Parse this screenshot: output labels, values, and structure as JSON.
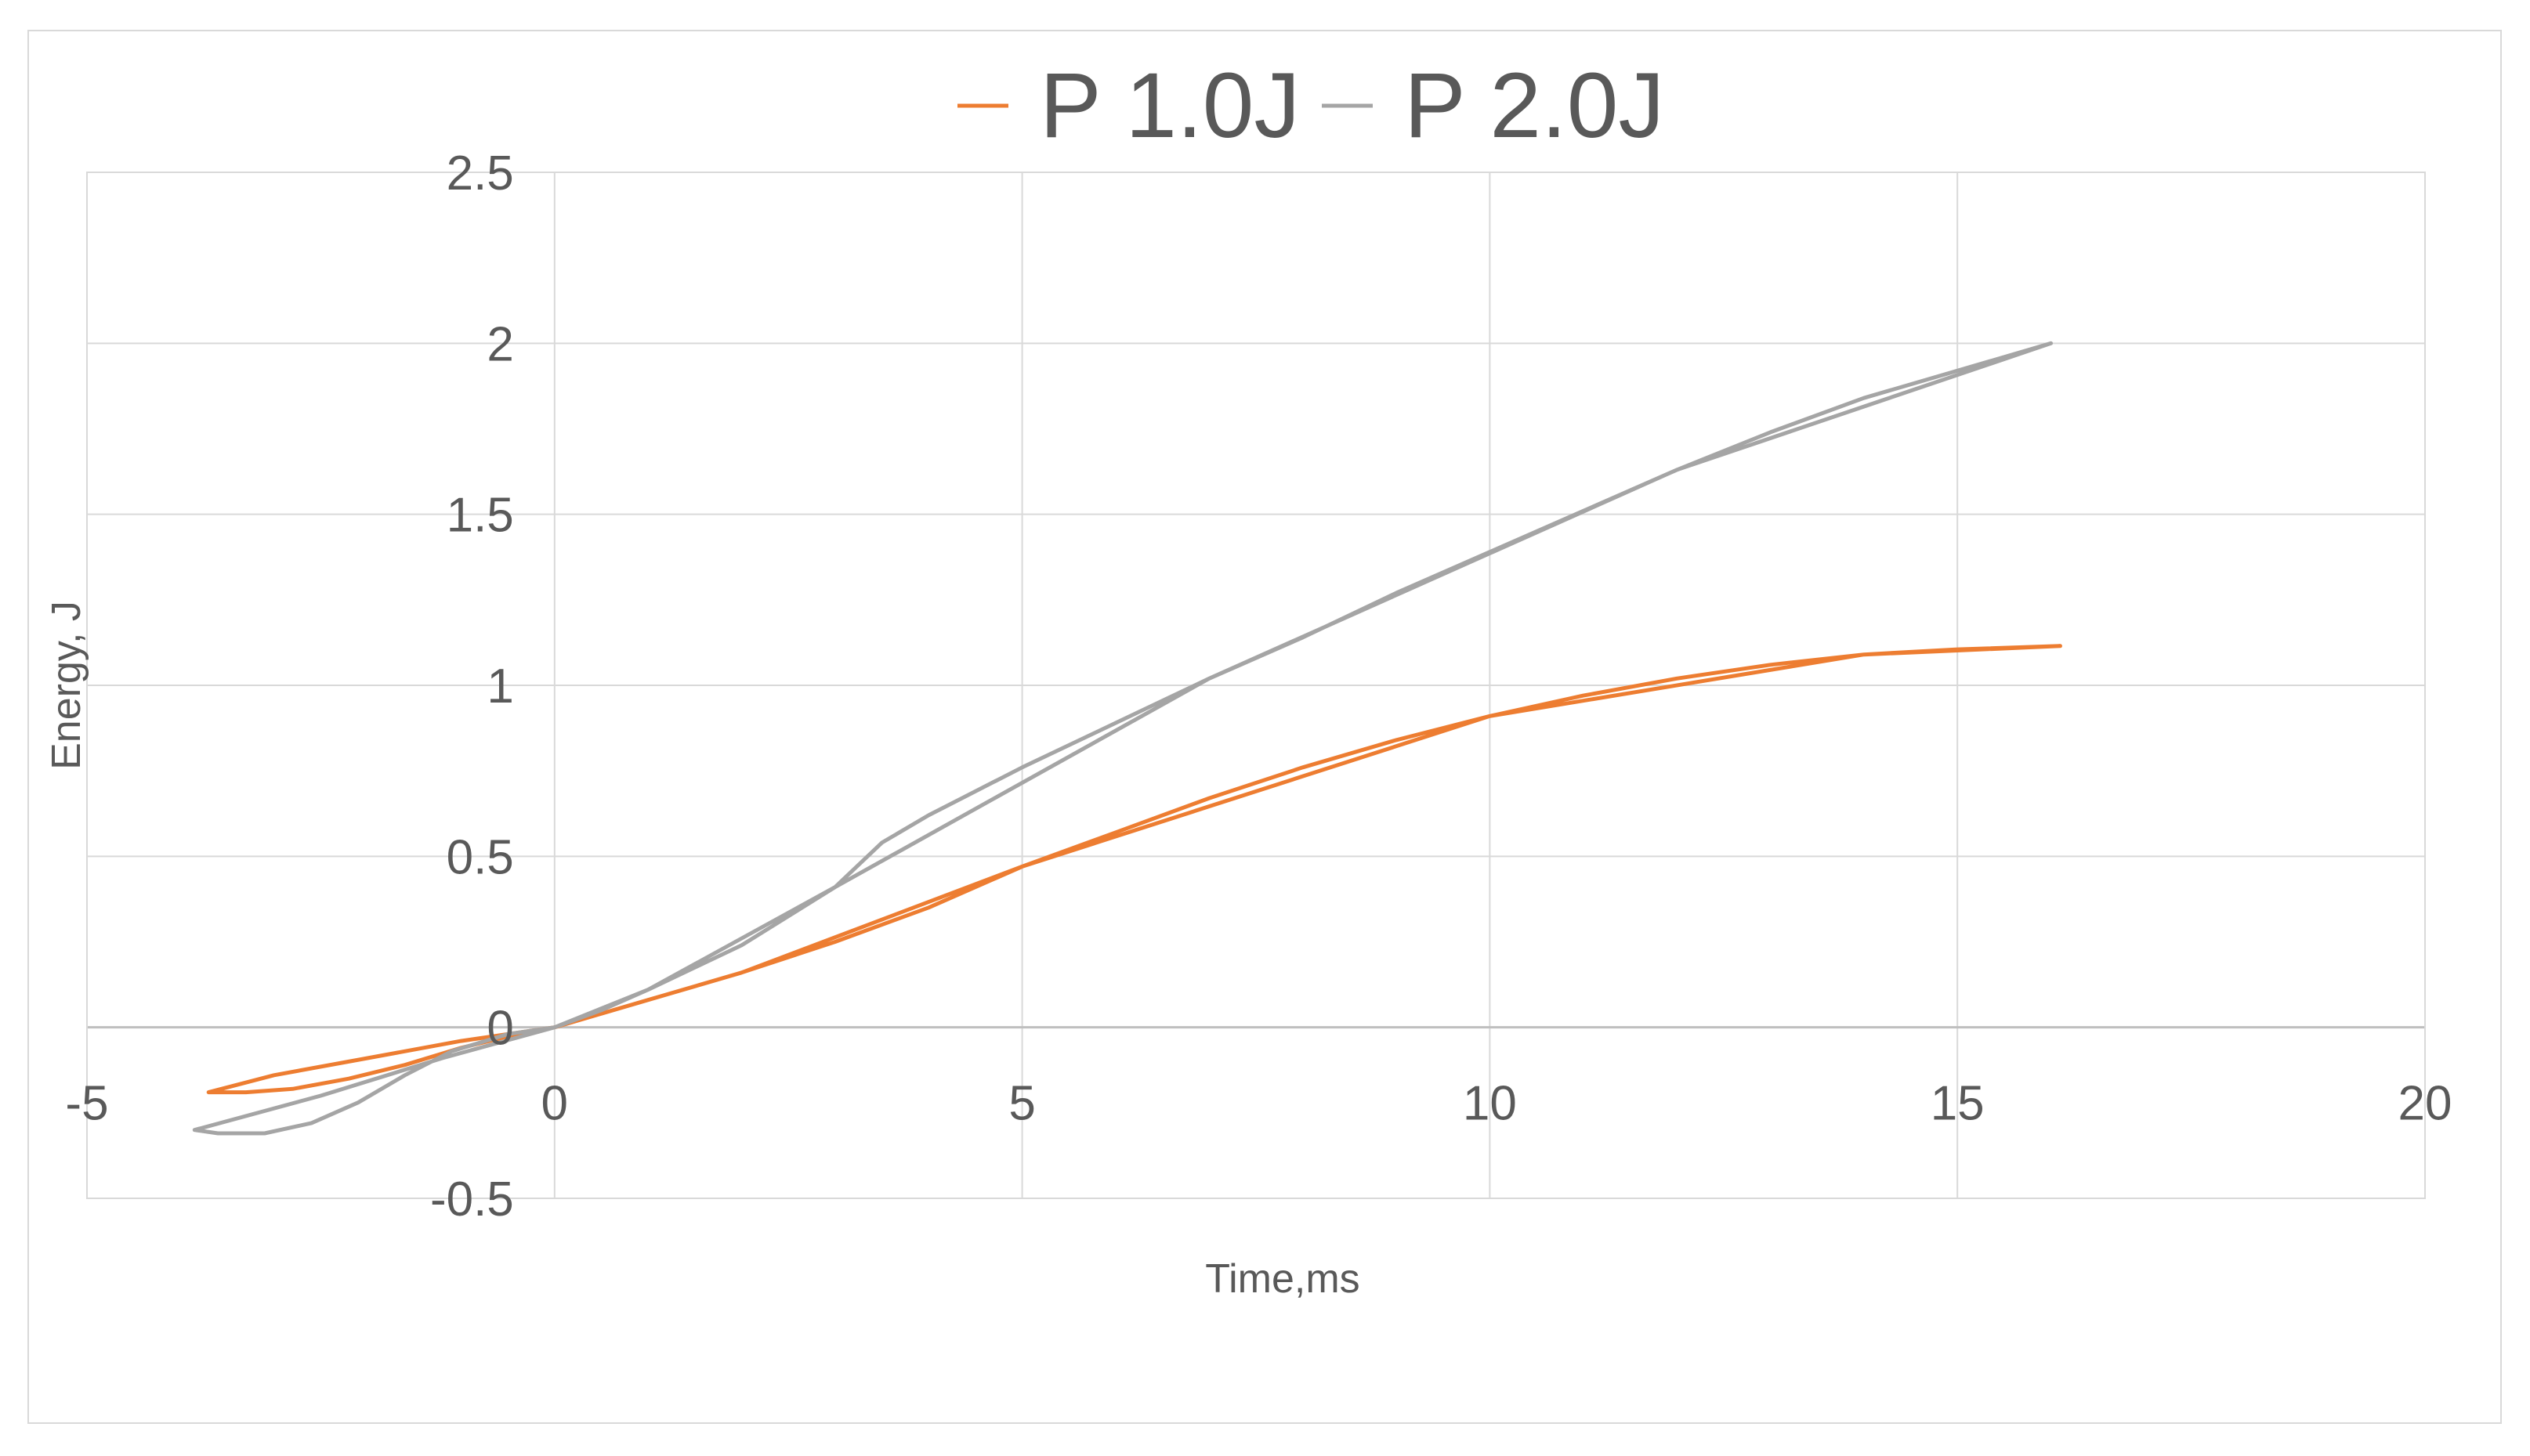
{
  "chart_data": {
    "type": "line",
    "xlabel": "Time,ms",
    "ylabel": "Energy, J",
    "xlim": [
      -5,
      20
    ],
    "ylim": [
      -0.5,
      2.5
    ],
    "x_ticks": [
      "-5",
      "0",
      "5",
      "10",
      "15",
      "20"
    ],
    "y_ticks": [
      "-0.5",
      "0",
      "0.5",
      "1",
      "1.5",
      "2",
      "2.5"
    ],
    "grid": true,
    "legend_position": "top",
    "series": [
      {
        "name": "P 1.0J",
        "color": "#ed7d31",
        "points": [
          [
            -3.7,
            -0.19
          ],
          [
            -3.3,
            -0.19
          ],
          [
            -2.8,
            -0.18
          ],
          [
            -2.2,
            -0.15
          ],
          [
            -1.6,
            -0.11
          ],
          [
            -1.0,
            -0.06
          ],
          [
            -0.4,
            -0.02
          ],
          [
            0.0,
            0.0
          ],
          [
            0.5,
            0.04
          ],
          [
            1.0,
            0.08
          ],
          [
            2.0,
            0.16
          ],
          [
            3.0,
            0.25
          ],
          [
            4.0,
            0.35
          ],
          [
            5.0,
            0.47
          ],
          [
            6.0,
            0.57
          ],
          [
            7.0,
            0.67
          ],
          [
            8.0,
            0.76
          ],
          [
            9.0,
            0.84
          ],
          [
            10.0,
            0.91
          ],
          [
            11.0,
            0.97
          ],
          [
            12.0,
            1.02
          ],
          [
            13.0,
            1.06
          ],
          [
            14.0,
            1.09
          ],
          [
            15.0,
            1.105
          ],
          [
            16.1,
            1.115
          ],
          [
            14.0,
            1.09
          ],
          [
            10.0,
            0.91
          ],
          [
            5.0,
            0.47
          ],
          [
            2.0,
            0.16
          ],
          [
            0.0,
            0.0
          ],
          [
            -1.0,
            -0.04
          ],
          [
            -2.0,
            -0.09
          ],
          [
            -3.0,
            -0.14
          ],
          [
            -3.7,
            -0.19
          ]
        ]
      },
      {
        "name": "P 2.0J",
        "color": "#a5a5a5",
        "points": [
          [
            -3.85,
            -0.3
          ],
          [
            -3.6,
            -0.31
          ],
          [
            -3.1,
            -0.31
          ],
          [
            -2.6,
            -0.28
          ],
          [
            -2.1,
            -0.22
          ],
          [
            -1.6,
            -0.14
          ],
          [
            -1.1,
            -0.07
          ],
          [
            -0.5,
            -0.02
          ],
          [
            0.0,
            0.0
          ],
          [
            0.5,
            0.05
          ],
          [
            1.0,
            0.11
          ],
          [
            2.0,
            0.24
          ],
          [
            3.0,
            0.41
          ],
          [
            3.5,
            0.54
          ],
          [
            4.0,
            0.62
          ],
          [
            5.0,
            0.76
          ],
          [
            6.0,
            0.89
          ],
          [
            7.0,
            1.02
          ],
          [
            8.0,
            1.14
          ],
          [
            9.0,
            1.27
          ],
          [
            10.0,
            1.39
          ],
          [
            11.0,
            1.51
          ],
          [
            12.0,
            1.63
          ],
          [
            13.0,
            1.74
          ],
          [
            14.0,
            1.84
          ],
          [
            15.0,
            1.92
          ],
          [
            16.0,
            2.0
          ],
          [
            12.0,
            1.63
          ],
          [
            7.0,
            1.02
          ],
          [
            3.0,
            0.41
          ],
          [
            1.0,
            0.11
          ],
          [
            0.0,
            0.0
          ],
          [
            -1.2,
            -0.09
          ],
          [
            -2.5,
            -0.2
          ],
          [
            -3.85,
            -0.3
          ]
        ]
      }
    ]
  }
}
